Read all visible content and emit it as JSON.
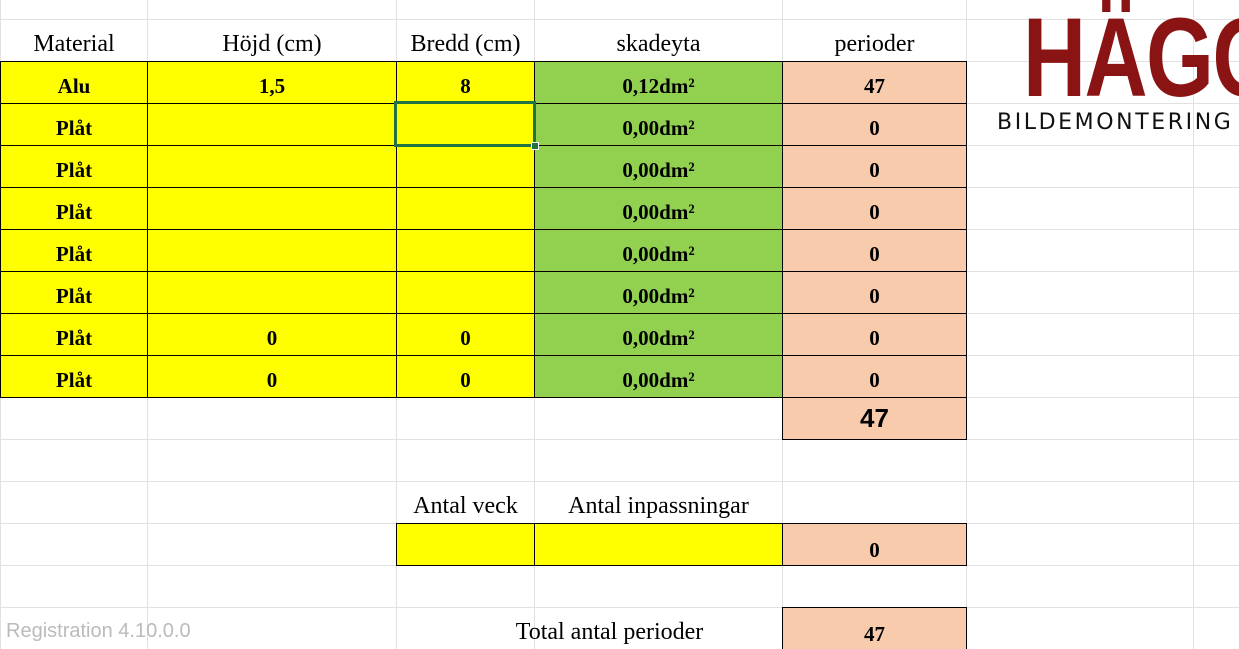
{
  "table": {
    "header": [
      "Material",
      "Höjd (cm)",
      "Bredd (cm)",
      "skadeyta",
      "perioder"
    ],
    "rows": [
      [
        "Alu",
        "1,5",
        "8",
        "0,12dm²",
        "47"
      ],
      [
        "Plåt",
        null,
        null,
        "0,00dm²",
        "0"
      ],
      [
        "Plåt",
        null,
        null,
        "0,00dm²",
        "0"
      ],
      [
        "Plåt",
        null,
        null,
        "0,00dm²",
        "0"
      ],
      [
        "Plåt",
        null,
        null,
        "0,00dm²",
        "0"
      ],
      [
        "Plåt",
        null,
        null,
        "0,00dm²",
        "0"
      ],
      [
        "Plåt",
        "0",
        "0",
        "0,00dm²",
        "0"
      ],
      [
        "Plåt",
        "0",
        "0",
        "0,00dm²",
        "0"
      ]
    ],
    "total_perioder": "47"
  },
  "extra": {
    "labels": [
      "Antal veck",
      "Antal inpassningar"
    ],
    "perioder": "0"
  },
  "total": {
    "label": "Total antal perioder",
    "value": "47"
  },
  "logo": {
    "title": "HÄGGS",
    "subtitle": "BILDEMONTERING"
  },
  "watermark": "Registration 4.10.0.0"
}
